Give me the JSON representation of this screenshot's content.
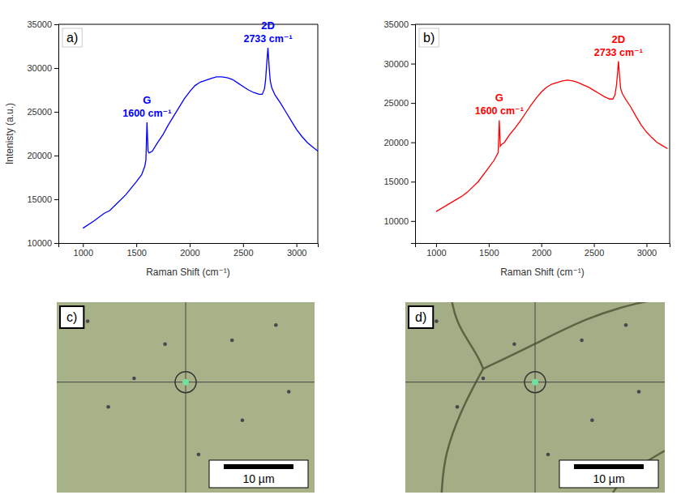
{
  "chart_data": [
    {
      "type": "line",
      "panel_label": "a)",
      "color": "#0000ff",
      "x_label": "Raman Shift (cm⁻¹)",
      "y_label": "Intenisty (a.u.)",
      "xlim": [
        770,
        3200
      ],
      "xticks": [
        1000,
        1500,
        2000,
        2500,
        3000
      ],
      "ylim": [
        10000,
        35000
      ],
      "yticks": [
        10000,
        15000,
        20000,
        25000,
        30000,
        35000
      ],
      "x": [
        1000,
        1100,
        1200,
        1250,
        1300,
        1400,
        1500,
        1550,
        1580,
        1590,
        1600,
        1610,
        1620,
        1650,
        1700,
        1750,
        1800,
        1850,
        1900,
        1950,
        2000,
        2050,
        2100,
        2150,
        2200,
        2250,
        2300,
        2350,
        2400,
        2450,
        2500,
        2550,
        2600,
        2650,
        2680,
        2700,
        2710,
        2720,
        2733,
        2745,
        2755,
        2770,
        2800,
        2850,
        2900,
        2950,
        3000,
        3050,
        3100,
        3150,
        3200
      ],
      "values": [
        11700,
        12500,
        13400,
        13700,
        14300,
        15500,
        17000,
        17800,
        18800,
        19500,
        23800,
        20500,
        20300,
        20500,
        21500,
        22400,
        23500,
        24500,
        25500,
        26500,
        27300,
        28000,
        28400,
        28600,
        28800,
        29000,
        29000,
        28900,
        28700,
        28300,
        27900,
        27500,
        27200,
        27000,
        27000,
        27600,
        28500,
        30200,
        32300,
        30000,
        28500,
        27700,
        26900,
        26000,
        25000,
        24000,
        23000,
        22200,
        21500,
        21000,
        20500
      ],
      "annotations": [
        {
          "label": "G",
          "text": "1600 cm⁻¹",
          "x": 1600
        },
        {
          "label": "2D",
          "text": "2733 cm⁻¹",
          "x": 2733
        }
      ]
    },
    {
      "type": "line",
      "panel_label": "b)",
      "color": "#ff0000",
      "x_label": "Raman Shift (cm⁻¹)",
      "xlim": [
        800,
        3220
      ],
      "xticks": [
        1000,
        1500,
        2000,
        2500,
        3000
      ],
      "ylim": [
        7200,
        35000
      ],
      "yticks": [
        10000,
        15000,
        20000,
        25000,
        30000,
        35000
      ],
      "x": [
        1000,
        1100,
        1200,
        1250,
        1300,
        1400,
        1500,
        1550,
        1590,
        1600,
        1610,
        1620,
        1650,
        1700,
        1750,
        1800,
        1850,
        1900,
        1950,
        2000,
        2050,
        2100,
        2150,
        2200,
        2250,
        2300,
        2350,
        2400,
        2450,
        2500,
        2550,
        2600,
        2650,
        2680,
        2700,
        2715,
        2725,
        2733,
        2745,
        2755,
        2770,
        2800,
        2850,
        2900,
        2950,
        3000,
        3050,
        3100,
        3150,
        3200
      ],
      "values": [
        11200,
        12000,
        12800,
        13200,
        13700,
        15000,
        16800,
        17700,
        18700,
        22800,
        19500,
        19700,
        20000,
        21000,
        21800,
        22700,
        23700,
        24700,
        25600,
        26400,
        27000,
        27400,
        27600,
        27800,
        27900,
        27800,
        27600,
        27300,
        27000,
        26600,
        26200,
        25800,
        25500,
        25500,
        26000,
        27300,
        28800,
        30300,
        28200,
        26800,
        26200,
        25500,
        24500,
        23300,
        22200,
        21300,
        20600,
        20000,
        19600,
        19200
      ],
      "annotations": [
        {
          "label": "G",
          "text": "1600 cm⁻¹",
          "x": 1600
        },
        {
          "label": "2D",
          "text": "2733 cm⁻¹",
          "x": 2733
        }
      ]
    }
  ],
  "images": [
    {
      "panel_label": "c)",
      "scale_bar": "10 µm"
    },
    {
      "panel_label": "d)",
      "scale_bar": "10 µm"
    }
  ]
}
